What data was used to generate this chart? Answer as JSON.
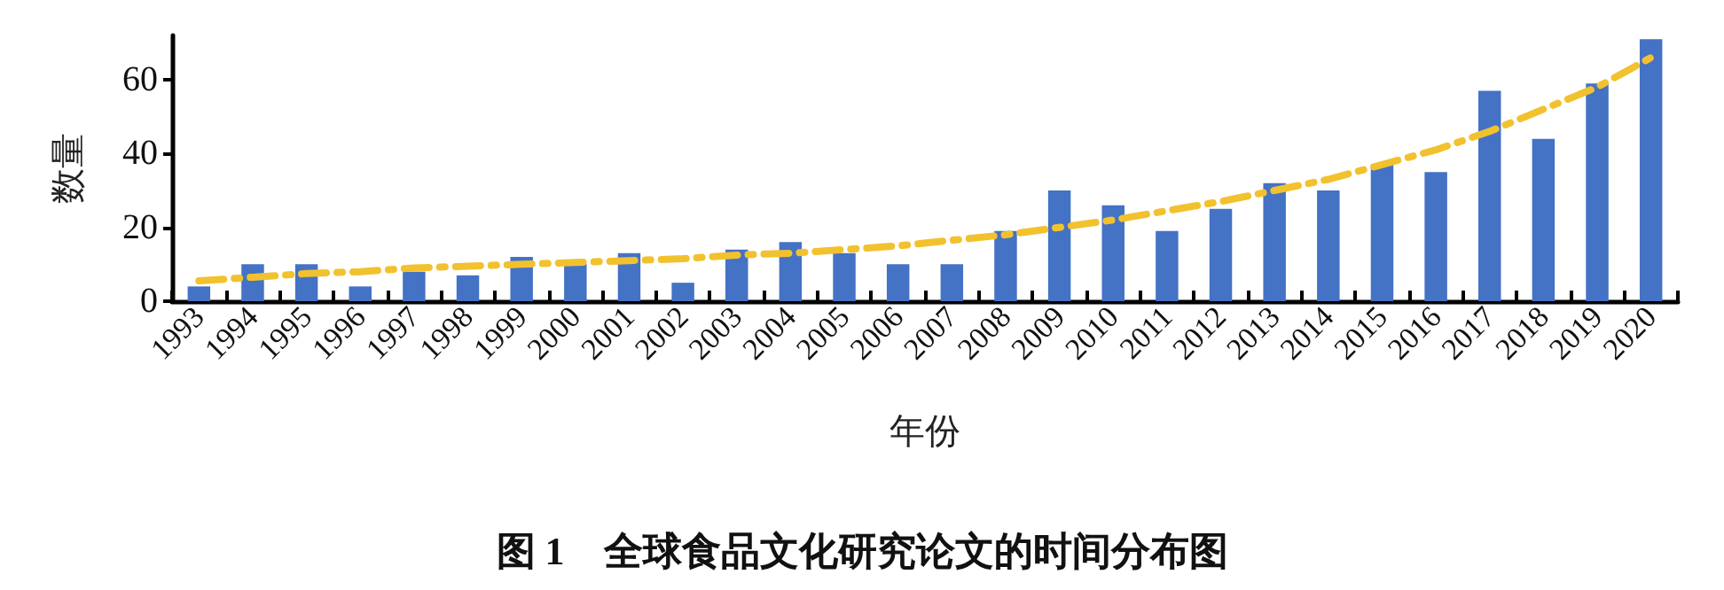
{
  "chart_data": {
    "type": "bar",
    "title": "图 1　全球食品文化研究论文的时间分布图",
    "xlabel": "年份",
    "ylabel": "数量",
    "categories": [
      "1993",
      "1994",
      "1995",
      "1996",
      "1997",
      "1998",
      "1999",
      "2000",
      "2001",
      "2002",
      "2003",
      "2004",
      "2005",
      "2006",
      "2007",
      "2008",
      "2009",
      "2010",
      "2011",
      "2012",
      "2013",
      "2014",
      "2015",
      "2016",
      "2017",
      "2018",
      "2019",
      "2020"
    ],
    "series": [
      {
        "color": "#4472c4",
        "values": [
          4,
          10,
          10,
          4,
          8,
          7,
          12,
          10,
          13,
          5,
          14,
          16,
          13,
          10,
          10,
          19,
          30,
          26,
          19,
          25,
          32,
          30,
          37,
          35,
          57,
          44,
          59,
          71
        ]
      },
      {
        "type": "line",
        "color": "#f2c12e",
        "line_style": "dashed",
        "marker": "none",
        "values": [
          5.5,
          6.5,
          7.5,
          8,
          9,
          9.5,
          10,
          10.5,
          11,
          11.5,
          12.5,
          13,
          14,
          15,
          16.5,
          18,
          20,
          22,
          24.5,
          27,
          30,
          33,
          37,
          41,
          46,
          52,
          58,
          66
        ]
      }
    ],
    "ylim": [
      0,
      72
    ],
    "yticks": [
      0,
      20,
      40,
      60
    ],
    "grid": false
  }
}
